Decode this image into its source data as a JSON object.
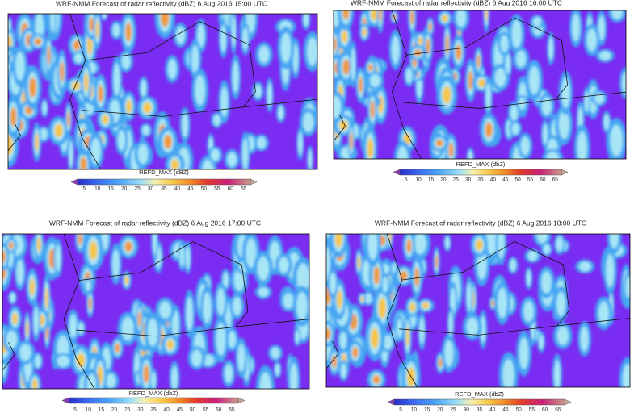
{
  "panels": [
    {
      "title": "WRF-NMM Forecast of radar reflectivity (dBZ) 6 Aug 2016 15:00 UTC",
      "colorbar": {
        "label": "REFD_MAX (dBZ)",
        "ticks": [
          "5",
          "10",
          "15",
          "20",
          "25",
          "30",
          "35",
          "40",
          "45",
          "50",
          "55",
          "60",
          "65"
        ]
      }
    },
    {
      "title": "WRF-NMM Forecast of radar reflectivity (dBZ) 6 Aug 2016 16:00 UTC",
      "colorbar": {
        "label": "REFD_MAX (dbZ)",
        "ticks": [
          "5",
          "10",
          "15",
          "20",
          "25",
          "30",
          "35",
          "40",
          "45",
          "50",
          "55",
          "60",
          "65"
        ]
      }
    },
    {
      "title": "WRF-NMM Forecast of radar reflectivity (dBZ) 6 Aug 2016 17:00 UTC",
      "colorbar": {
        "label": "REFD_MAX (dbZ)",
        "ticks": [
          "5",
          "10",
          "15",
          "20",
          "25",
          "30",
          "35",
          "40",
          "45",
          "50",
          "55",
          "60",
          "65"
        ]
      }
    },
    {
      "title": "WRF-NMM Forecast of radar reflectivity (dBZ) 6 Aug 2016 18:00 UTC",
      "colorbar": {
        "label": "REFD_MAX (dbZ)",
        "ticks": [
          "5",
          "10",
          "15",
          "20",
          "25",
          "30",
          "35",
          "40",
          "45",
          "50",
          "55",
          "60",
          "65"
        ]
      }
    }
  ]
}
